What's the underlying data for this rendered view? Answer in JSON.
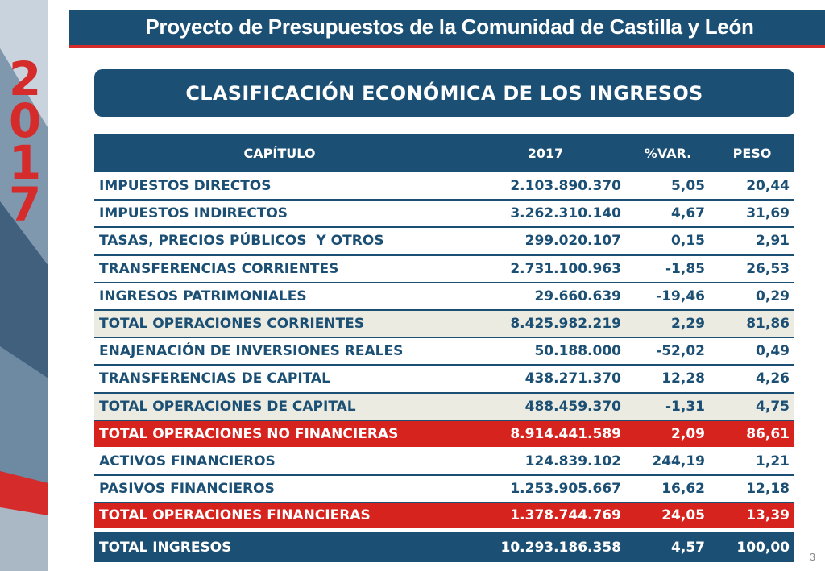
{
  "header": {
    "title": "Proyecto de Presupuestos de la Comunidad de Castilla y León"
  },
  "side": {
    "year_digits": [
      "2",
      "0",
      "1",
      "7"
    ]
  },
  "section": {
    "title": "CLASIFICACIÓN ECONÓMICA DE LOS INGRESOS"
  },
  "table": {
    "columns": [
      "CAPÍTULO",
      "2017",
      "%VAR.",
      "PESO"
    ],
    "rows": [
      {
        "capitulo": "IMPUESTOS DIRECTOS",
        "value": "2.103.890.370",
        "var": "5,05",
        "peso": "20,44"
      },
      {
        "capitulo": "IMPUESTOS INDIRECTOS",
        "value": "3.262.310.140",
        "var": "4,67",
        "peso": "31,69"
      },
      {
        "capitulo": "TASAS, PRECIOS PÚBLICOS  Y OTROS",
        "value": "299.020.107",
        "var": "0,15",
        "peso": "2,91"
      },
      {
        "capitulo": "TRANSFERENCIAS CORRIENTES",
        "value": "2.731.100.963",
        "var": "-1,85",
        "peso": "26,53"
      },
      {
        "capitulo": "INGRESOS PATRIMONIALES",
        "value": "29.660.639",
        "var": "-19,46",
        "peso": "0,29"
      },
      {
        "capitulo": "TOTAL OPERACIONES CORRIENTES",
        "value": "8.425.982.219",
        "var": "2,29",
        "peso": "81,86"
      },
      {
        "capitulo": "ENAJENACIÓN DE INVERSIONES REALES",
        "value": "50.188.000",
        "var": "-52,02",
        "peso": "0,49"
      },
      {
        "capitulo": "TRANSFERENCIAS DE CAPITAL",
        "value": "438.271.370",
        "var": "12,28",
        "peso": "4,26"
      },
      {
        "capitulo": "TOTAL OPERACIONES DE CAPITAL",
        "value": "488.459.370",
        "var": "-1,31",
        "peso": "4,75"
      },
      {
        "capitulo": "TOTAL OPERACIONES NO FINANCIERAS",
        "value": "8.914.441.589",
        "var": "2,09",
        "peso": "86,61"
      },
      {
        "capitulo": "ACTIVOS FINANCIEROS",
        "value": "124.839.102",
        "var": "244,19",
        "peso": "1,21"
      },
      {
        "capitulo": "PASIVOS FINANCIEROS",
        "value": "1.253.905.667",
        "var": "16,62",
        "peso": "12,18"
      },
      {
        "capitulo": "TOTAL OPERACIONES FINANCIERAS",
        "value": "1.378.744.769",
        "var": "24,05",
        "peso": "13,39"
      },
      {
        "capitulo": "TOTAL INGRESOS",
        "value": "10.293.186.358",
        "var": "4,57",
        "peso": "100,00"
      }
    ]
  },
  "footer": {
    "page_number": "3"
  },
  "colors": {
    "navy": "#1b4f74",
    "red": "#d7231e",
    "subtotal_bg": "#ecebe1"
  }
}
